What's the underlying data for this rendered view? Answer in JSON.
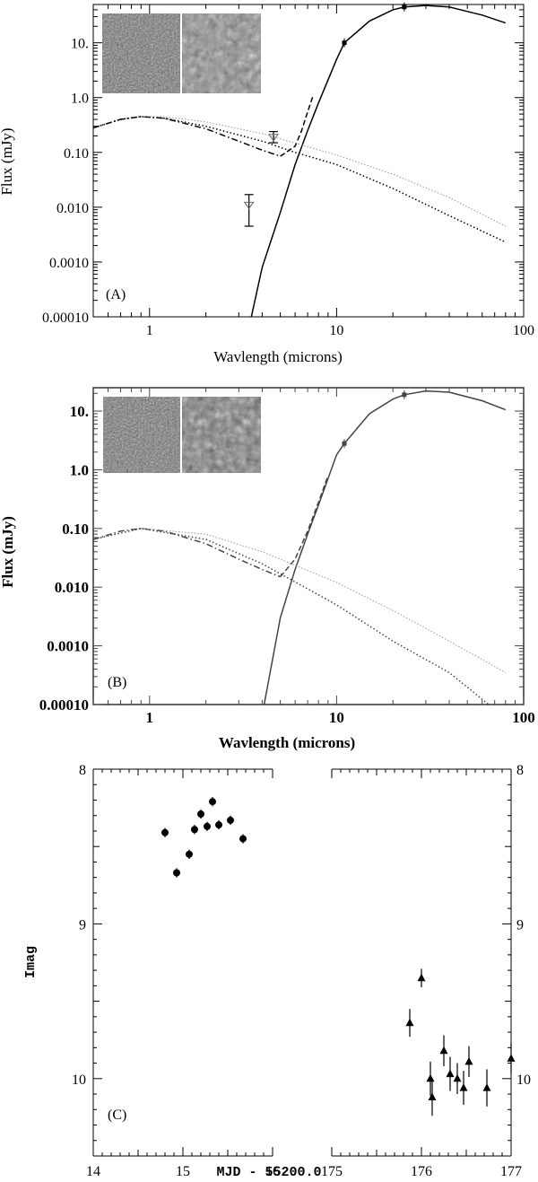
{
  "chart_data": [
    {
      "type": "line",
      "panel_label": "(A)",
      "xlabel": "Wavlength (microns)",
      "ylabel": "Flux (mJy)",
      "xscale": "log",
      "yscale": "log",
      "xlim": [
        0.5,
        100
      ],
      "ylim": [
        0.0001,
        50
      ],
      "x_ticks": [
        1,
        10,
        100
      ],
      "x_tick_labels": [
        "1",
        "10",
        "100"
      ],
      "y_ticks": [
        0.0001,
        0.001,
        0.01,
        0.1,
        1,
        10
      ],
      "y_tick_labels": [
        "0.00010",
        "0.0010",
        "0.010",
        "0.10",
        "1.0",
        "10."
      ],
      "inset": "two grayscale image cutouts, top-left",
      "series": [
        {
          "style": "solid",
          "x": [
            3.5,
            4,
            5,
            6,
            7,
            8,
            10,
            11,
            15,
            20,
            23,
            30,
            40,
            60,
            80
          ],
          "y": [
            0.0001,
            0.0008,
            0.008,
            0.06,
            0.25,
            0.8,
            5,
            10,
            25,
            40,
            45,
            48,
            45,
            32,
            23
          ]
        },
        {
          "style": "dash-dot",
          "x": [
            0.5,
            0.7,
            0.9,
            1.2,
            2,
            3,
            4,
            5
          ],
          "y": [
            0.28,
            0.4,
            0.45,
            0.42,
            0.27,
            0.16,
            0.11,
            0.085
          ]
        },
        {
          "style": "dashed",
          "x": [
            5,
            6,
            6.5,
            7,
            7.5
          ],
          "y": [
            0.085,
            0.13,
            0.25,
            0.55,
            1.1
          ]
        },
        {
          "style": "dotted",
          "x": [
            0.5,
            0.7,
            0.9,
            1.2,
            2,
            4,
            6,
            10,
            20,
            40,
            80
          ],
          "y": [
            0.28,
            0.4,
            0.45,
            0.42,
            0.3,
            0.16,
            0.1,
            0.06,
            0.022,
            0.007,
            0.0023
          ]
        },
        {
          "style": "faint-dotted",
          "x": [
            0.9,
            1.2,
            2,
            4,
            10,
            20,
            40,
            80
          ],
          "y": [
            0.45,
            0.45,
            0.36,
            0.22,
            0.09,
            0.04,
            0.015,
            0.0045
          ]
        }
      ],
      "points": [
        {
          "x": 11,
          "y": 10
        },
        {
          "x": 23,
          "y": 45
        }
      ],
      "upper_limits": [
        {
          "x": 3.4,
          "y": 0.011,
          "err_hi": 0.017,
          "err_lo": 0.0045
        },
        {
          "x": 4.6,
          "y": 0.19,
          "err_hi": 0.24,
          "err_lo": 0.15
        }
      ]
    },
    {
      "type": "line",
      "panel_label": "(B)",
      "xlabel": "Wavlength (microns)",
      "ylabel": "Flux (mJy)",
      "xscale": "log",
      "yscale": "log",
      "xlim": [
        0.5,
        100
      ],
      "ylim": [
        0.0001,
        25
      ],
      "x_ticks": [
        1,
        10,
        100
      ],
      "x_tick_labels": [
        "1",
        "10",
        "100"
      ],
      "y_ticks": [
        0.0001,
        0.001,
        0.01,
        0.1,
        1,
        10
      ],
      "y_tick_labels": [
        "0.00010",
        "0.0010",
        "0.010",
        "0.10",
        "1.0",
        "10."
      ],
      "inset": "two grayscale image cutouts, top-left",
      "series": [
        {
          "style": "solid",
          "x": [
            4.1,
            5,
            6,
            7,
            8,
            10,
            11,
            15,
            20,
            23,
            30,
            40,
            60,
            80
          ],
          "y": [
            0.0001,
            0.003,
            0.02,
            0.08,
            0.25,
            1.8,
            2.8,
            9,
            16,
            19,
            22,
            21,
            15,
            10.5
          ]
        },
        {
          "style": "dash-dot",
          "x": [
            0.5,
            0.7,
            0.9,
            1.2,
            2,
            3,
            4,
            5
          ],
          "y": [
            0.065,
            0.09,
            0.1,
            0.09,
            0.055,
            0.03,
            0.02,
            0.015
          ]
        },
        {
          "style": "dashed",
          "x": [
            5,
            6,
            7,
            8,
            9
          ],
          "y": [
            0.015,
            0.03,
            0.09,
            0.28,
            0.8
          ]
        },
        {
          "style": "dotted",
          "x": [
            0.5,
            0.9,
            2,
            4,
            10,
            20,
            40,
            65
          ],
          "y": [
            0.065,
            0.1,
            0.065,
            0.025,
            0.005,
            0.0012,
            0.00035,
            0.0001
          ]
        },
        {
          "style": "faint-dotted",
          "x": [
            0.9,
            2,
            4,
            10,
            20,
            40,
            80
          ],
          "y": [
            0.1,
            0.08,
            0.04,
            0.012,
            0.004,
            0.0012,
            0.00035
          ]
        }
      ],
      "points": [
        {
          "x": 11,
          "y": 2.8
        },
        {
          "x": 23,
          "y": 19
        }
      ]
    },
    {
      "type": "scatter",
      "panel_label": "(C)",
      "xlabel": "MJD - 55200.0",
      "ylabel": "Imag",
      "y_inverted": true,
      "ylim": [
        10.5,
        8
      ],
      "y_ticks": [
        8,
        9,
        10
      ],
      "y_tick_labels": [
        "8",
        "9",
        "10"
      ],
      "subpanels": [
        {
          "xlim": [
            14,
            16
          ],
          "x_ticks": [
            14,
            15,
            16
          ],
          "x_tick_labels": [
            "14",
            "15",
            "16"
          ],
          "marker": "circle",
          "x": [
            14.8,
            14.93,
            15.07,
            15.13,
            15.2,
            15.27,
            15.33,
            15.4,
            15.53,
            15.67
          ],
          "y": [
            8.41,
            8.67,
            8.55,
            8.39,
            8.29,
            8.37,
            8.21,
            8.36,
            8.33,
            8.45
          ],
          "err": [
            0.03,
            0.03,
            0.03,
            0.03,
            0.03,
            0.03,
            0.03,
            0.03,
            0.03,
            0.03
          ]
        },
        {
          "xlim": [
            175,
            177
          ],
          "x_ticks": [
            175,
            176,
            177
          ],
          "x_tick_labels": [
            "175",
            "176",
            "177"
          ],
          "marker": "triangle",
          "x": [
            175.87,
            176.0,
            176.1,
            176.12,
            176.25,
            176.32,
            176.4,
            176.47,
            176.53,
            176.73,
            177.0
          ],
          "y": [
            9.64,
            9.35,
            10.0,
            10.12,
            9.82,
            9.97,
            10.0,
            10.06,
            9.89,
            10.06,
            9.87
          ],
          "err": [
            0.09,
            0.06,
            0.11,
            0.12,
            0.1,
            0.11,
            0.1,
            0.11,
            0.1,
            0.12,
            0.1
          ]
        }
      ]
    }
  ]
}
